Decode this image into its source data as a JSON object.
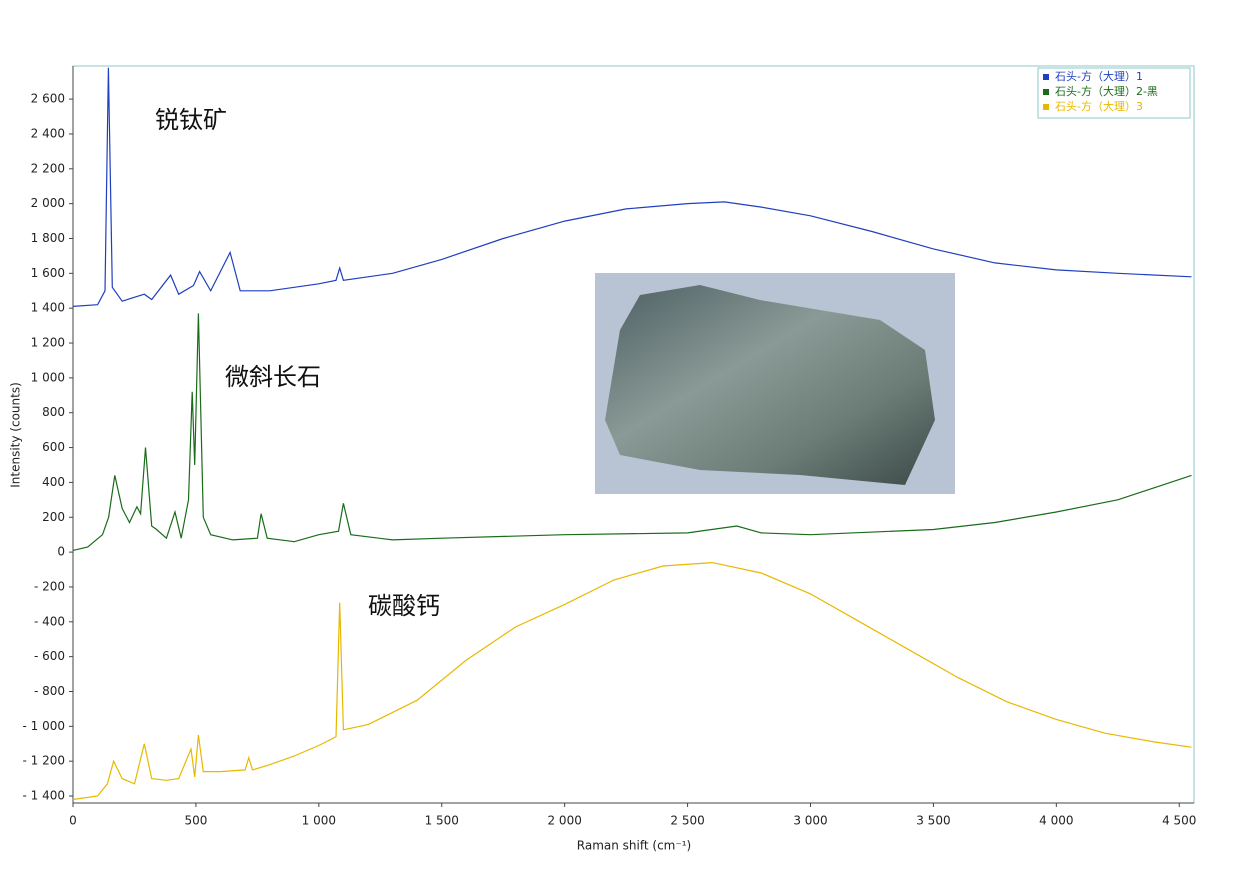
{
  "chart_data": {
    "type": "line",
    "x_label": "Raman shift (cm⁻¹)",
    "y_label": "Intensity (counts)",
    "annotations": [
      "锐钛矿",
      "微斜长石",
      "碳酸钙"
    ],
    "xlim": [
      0,
      4560
    ],
    "ylim": [
      -1440,
      2790
    ],
    "xticks": [
      0,
      500,
      {
        "value": 1000,
        "label": "1 000"
      },
      {
        "value": 1500,
        "label": "1 500"
      },
      {
        "value": 2000,
        "label": "2 000"
      },
      {
        "value": 2500,
        "label": "2 500"
      },
      {
        "value": 3000,
        "label": "3 000"
      },
      {
        "value": 3500,
        "label": "3 500"
      },
      {
        "value": 4000,
        "label": "4 000"
      },
      {
        "value": 4500,
        "label": "4 500"
      }
    ],
    "yticks": [
      {
        "value": -1400,
        "label": "- 1 400"
      },
      {
        "value": -1200,
        "label": "- 1 200"
      },
      {
        "value": -1000,
        "label": "- 1 000"
      },
      {
        "value": -800,
        "label": "- 800"
      },
      {
        "value": -600,
        "label": "- 600"
      },
      {
        "value": -400,
        "label": "- 400"
      },
      {
        "value": -200,
        "label": "- 200"
      },
      0,
      200,
      400,
      600,
      800,
      {
        "value": 1000,
        "label": "1 000"
      },
      {
        "value": 1200,
        "label": "1 200"
      },
      {
        "value": 1400,
        "label": "1 400"
      },
      {
        "value": 1600,
        "label": "1 600"
      },
      {
        "value": 1800,
        "label": "1 800"
      },
      {
        "value": 2000,
        "label": "2 000"
      },
      {
        "value": 2200,
        "label": "2 200"
      },
      {
        "value": 2400,
        "label": "2 400"
      },
      {
        "value": 2600,
        "label": "2 600"
      }
    ],
    "legend": "top-right",
    "series": [
      {
        "name": "石头-方（大理）1",
        "color": "#1f3fbf",
        "x": [
          0,
          100,
          130,
          144,
          160,
          200,
          290,
          320,
          397,
          430,
          490,
          515,
          560,
          639,
          680,
          800,
          1000,
          1070,
          1085,
          1100,
          1300,
          1500,
          1750,
          2000,
          2250,
          2500,
          2650,
          2800,
          3000,
          3250,
          3500,
          3750,
          4000,
          4250,
          4550
        ],
        "values": [
          1410,
          1420,
          1500,
          2780,
          1520,
          1440,
          1480,
          1450,
          1590,
          1480,
          1530,
          1610,
          1500,
          1720,
          1500,
          1500,
          1540,
          1560,
          1630,
          1560,
          1600,
          1680,
          1800,
          1900,
          1970,
          2000,
          2010,
          1980,
          1930,
          1840,
          1740,
          1660,
          1620,
          1600,
          1580
        ]
      },
      {
        "name": "石头-方（大理）2-黑",
        "color": "#1a6b1a",
        "x": [
          0,
          60,
          120,
          145,
          170,
          200,
          230,
          260,
          275,
          295,
          320,
          340,
          380,
          415,
          440,
          470,
          485,
          495,
          510,
          530,
          560,
          650,
          750,
          765,
          790,
          900,
          1000,
          1080,
          1100,
          1130,
          1300,
          1500,
          2000,
          2500,
          2700,
          2800,
          3000,
          3500,
          3750,
          4000,
          4250,
          4550
        ],
        "values": [
          10,
          30,
          100,
          200,
          440,
          250,
          170,
          260,
          220,
          600,
          150,
          130,
          80,
          230,
          80,
          300,
          920,
          500,
          1370,
          200,
          100,
          70,
          80,
          220,
          80,
          60,
          100,
          120,
          280,
          100,
          70,
          80,
          100,
          110,
          150,
          110,
          100,
          130,
          170,
          230,
          300,
          440
        ]
      },
      {
        "name": "石头-方（大理）3",
        "color": "#e8b800",
        "x": [
          0,
          100,
          140,
          165,
          200,
          250,
          290,
          320,
          380,
          430,
          480,
          495,
          510,
          530,
          600,
          700,
          715,
          730,
          800,
          900,
          1000,
          1070,
          1085,
          1100,
          1200,
          1400,
          1600,
          1800,
          2000,
          2200,
          2400,
          2600,
          2800,
          3000,
          3200,
          3400,
          3600,
          3800,
          4000,
          4200,
          4400,
          4550
        ],
        "values": [
          -1420,
          -1400,
          -1330,
          -1200,
          -1300,
          -1330,
          -1100,
          -1300,
          -1310,
          -1300,
          -1130,
          -1290,
          -1050,
          -1260,
          -1260,
          -1250,
          -1180,
          -1250,
          -1220,
          -1170,
          -1110,
          -1060,
          -290,
          -1020,
          -990,
          -850,
          -620,
          -430,
          -300,
          -160,
          -80,
          -60,
          -120,
          -240,
          -400,
          -560,
          -720,
          -860,
          -960,
          -1040,
          -1090,
          -1120
        ]
      }
    ]
  }
}
